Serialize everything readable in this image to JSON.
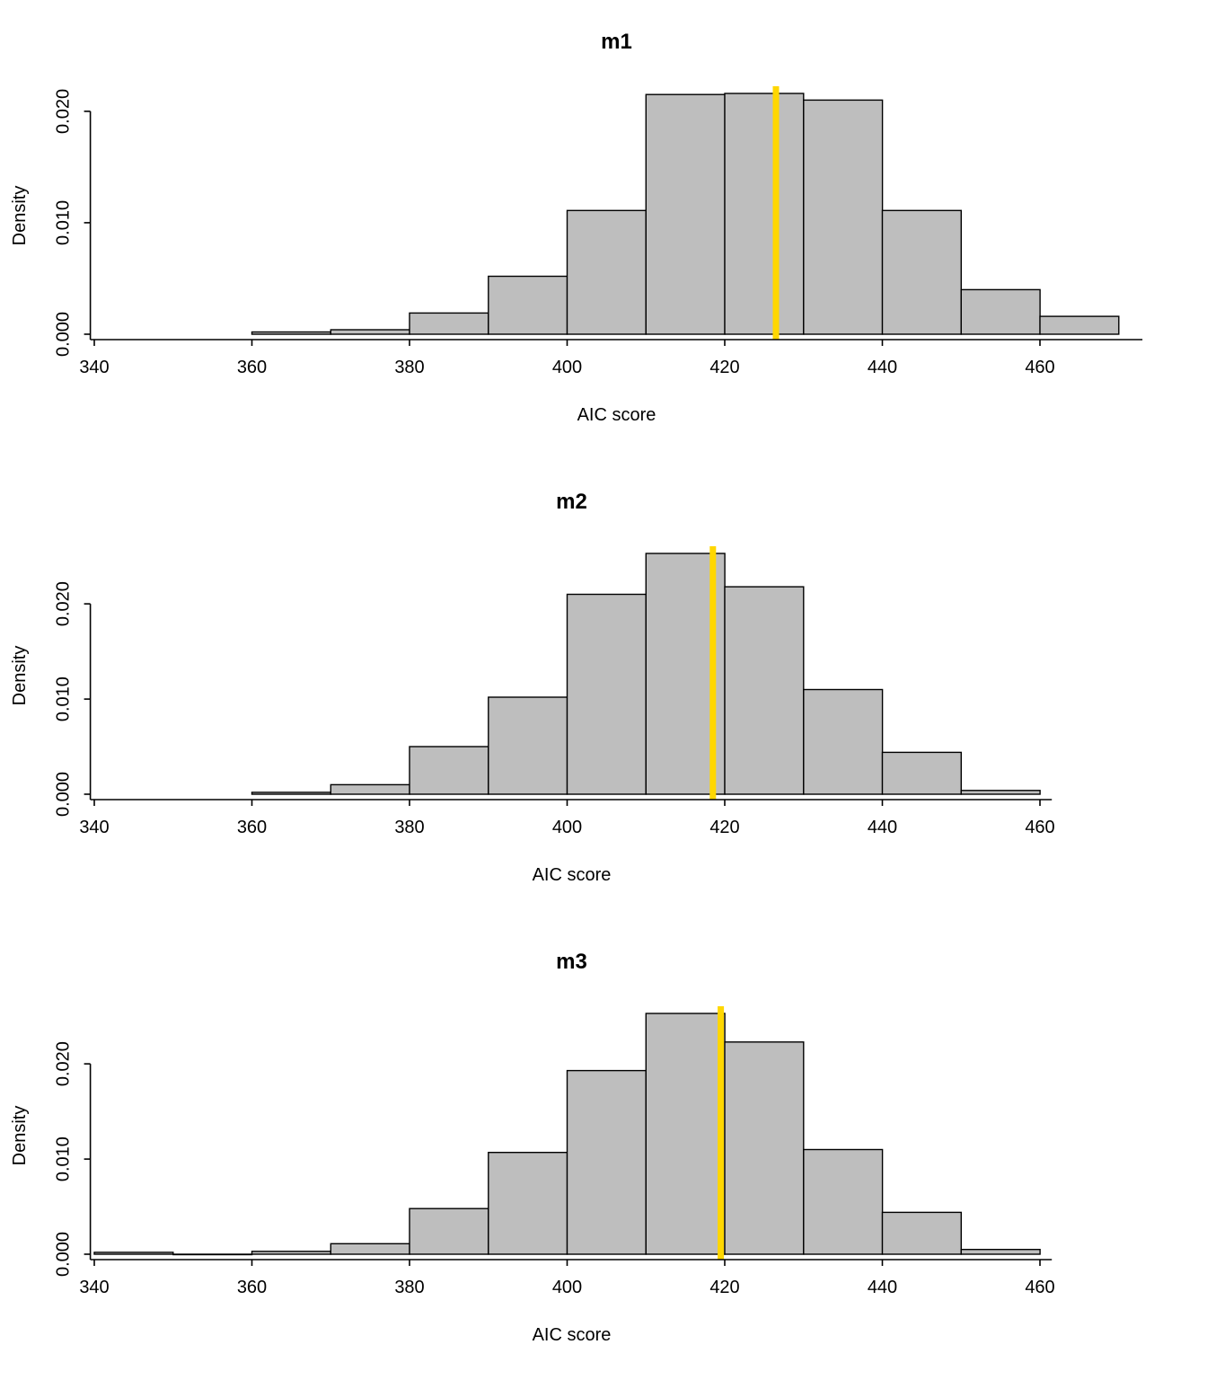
{
  "page": {
    "background": "#ffffff",
    "description": "Three stacked density histograms of simulated AIC scores for models m1, m2, m3, each with a gold vertical reference line"
  },
  "chart_data": [
    {
      "type": "bar",
      "subtype": "density-histogram",
      "title": "m1",
      "xlabel": "AIC score",
      "ylabel": "Density",
      "bin_edges": [
        360,
        370,
        380,
        390,
        400,
        410,
        420,
        430,
        440,
        450,
        460,
        470
      ],
      "densities": [
        0.0002,
        0.0004,
        0.0019,
        0.0052,
        0.0111,
        0.0215,
        0.0216,
        0.021,
        0.0111,
        0.004,
        0.0016
      ],
      "vline": 426.5,
      "xlim": [
        339.5,
        473
      ],
      "ylim": [
        0,
        0.0216
      ],
      "xticks": [
        340,
        360,
        380,
        400,
        420,
        440,
        460
      ],
      "yticks": [
        0,
        0.01,
        0.02
      ],
      "ytick_labels": [
        "0.000",
        "0.010",
        "0.020"
      ],
      "bar_color": "#bebebe",
      "bar_border": "#000000",
      "vline_color": "#ffd700",
      "grid": false,
      "legend": "none"
    },
    {
      "type": "bar",
      "subtype": "density-histogram",
      "title": "m2",
      "xlabel": "AIC score",
      "ylabel": "Density",
      "bin_edges": [
        360,
        370,
        380,
        390,
        400,
        410,
        420,
        430,
        440,
        450,
        460
      ],
      "densities": [
        0.0002,
        0.001,
        0.005,
        0.0102,
        0.021,
        0.0253,
        0.0218,
        0.011,
        0.0044,
        0.0004
      ],
      "vline": 418.5,
      "xlim": [
        339.5,
        461.5
      ],
      "ylim": [
        0,
        0.0253
      ],
      "xticks": [
        340,
        360,
        380,
        400,
        420,
        440,
        460
      ],
      "yticks": [
        0,
        0.01,
        0.02
      ],
      "ytick_labels": [
        "0.000",
        "0.010",
        "0.020"
      ],
      "bar_color": "#bebebe",
      "bar_border": "#000000",
      "vline_color": "#ffd700",
      "grid": false,
      "legend": "none"
    },
    {
      "type": "bar",
      "subtype": "density-histogram",
      "title": "m3",
      "xlabel": "AIC score",
      "ylabel": "Density",
      "bin_edges": [
        340,
        350,
        360,
        370,
        380,
        390,
        400,
        410,
        420,
        430,
        440,
        450,
        460
      ],
      "densities": [
        0.0002,
        0.0,
        0.0003,
        0.0011,
        0.0048,
        0.0107,
        0.0193,
        0.0253,
        0.0223,
        0.011,
        0.0044,
        0.0005
      ],
      "vline": 419.5,
      "xlim": [
        339.5,
        461.5
      ],
      "ylim": [
        0,
        0.0253
      ],
      "xticks": [
        340,
        360,
        380,
        400,
        420,
        440,
        460
      ],
      "yticks": [
        0,
        0.01,
        0.02
      ],
      "ytick_labels": [
        "0.000",
        "0.010",
        "0.020"
      ],
      "bar_color": "#bebebe",
      "bar_border": "#000000",
      "vline_color": "#ffd700",
      "grid": false,
      "legend": "none"
    }
  ]
}
